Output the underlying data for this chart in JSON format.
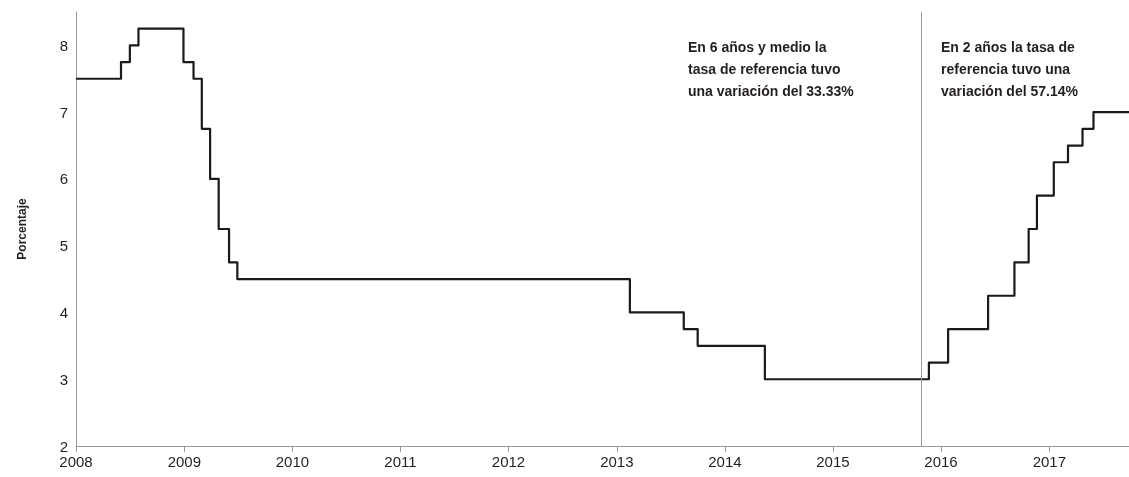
{
  "chart_data": {
    "type": "step",
    "ylabel": "Porcentaje",
    "annotations": [
      "En 6 años y medio la tasa de referencia tuvo una variación del 33.33%",
      "En 2 años la tasa de referencia tuvo una variación del 57.14%"
    ],
    "x": [
      "2008-01-01",
      "2008-06-01",
      "2008-07-01",
      "2008-07-30",
      "2008-12-29",
      "2009-02-01",
      "2009-03-01",
      "2009-03-29",
      "2009-04-27",
      "2009-06-01",
      "2009-06-29",
      "2013-02-14",
      "2013-08-15",
      "2013-10-01",
      "2014-05-16",
      "2015-11-21",
      "2016-01-25",
      "2016-06-08",
      "2016-09-05",
      "2016-10-23",
      "2016-11-20",
      "2017-01-16",
      "2017-03-05",
      "2017-04-23",
      "2017-05-30",
      "2017-09-27"
    ],
    "series": [
      {
        "color": "#1a1a1a",
        "values": [
          7.5,
          7.75,
          8,
          8.25,
          7.75,
          7.5,
          6.75,
          6,
          5.25,
          4.75,
          4.5,
          4,
          3.75,
          3.5,
          3,
          3.25,
          3.75,
          4.25,
          4.75,
          5.25,
          5.75,
          6.25,
          6.5,
          6.75,
          7,
          7
        ]
      }
    ],
    "xlim": [
      "2008-01-01",
      "2017-09-27"
    ],
    "xticks": [
      "2008",
      "2009",
      "2010",
      "2011",
      "2012",
      "2013",
      "2014",
      "2015",
      "2016",
      "2017"
    ],
    "ylim": [
      2,
      8.5
    ],
    "yticks": [
      2,
      3,
      4,
      5,
      6,
      7,
      8
    ],
    "ref_lines": [
      {
        "axis": "x",
        "value": "2015-10-26",
        "color": "#999999"
      }
    ],
    "grid": false,
    "marker": "none",
    "line_style": "solid"
  }
}
